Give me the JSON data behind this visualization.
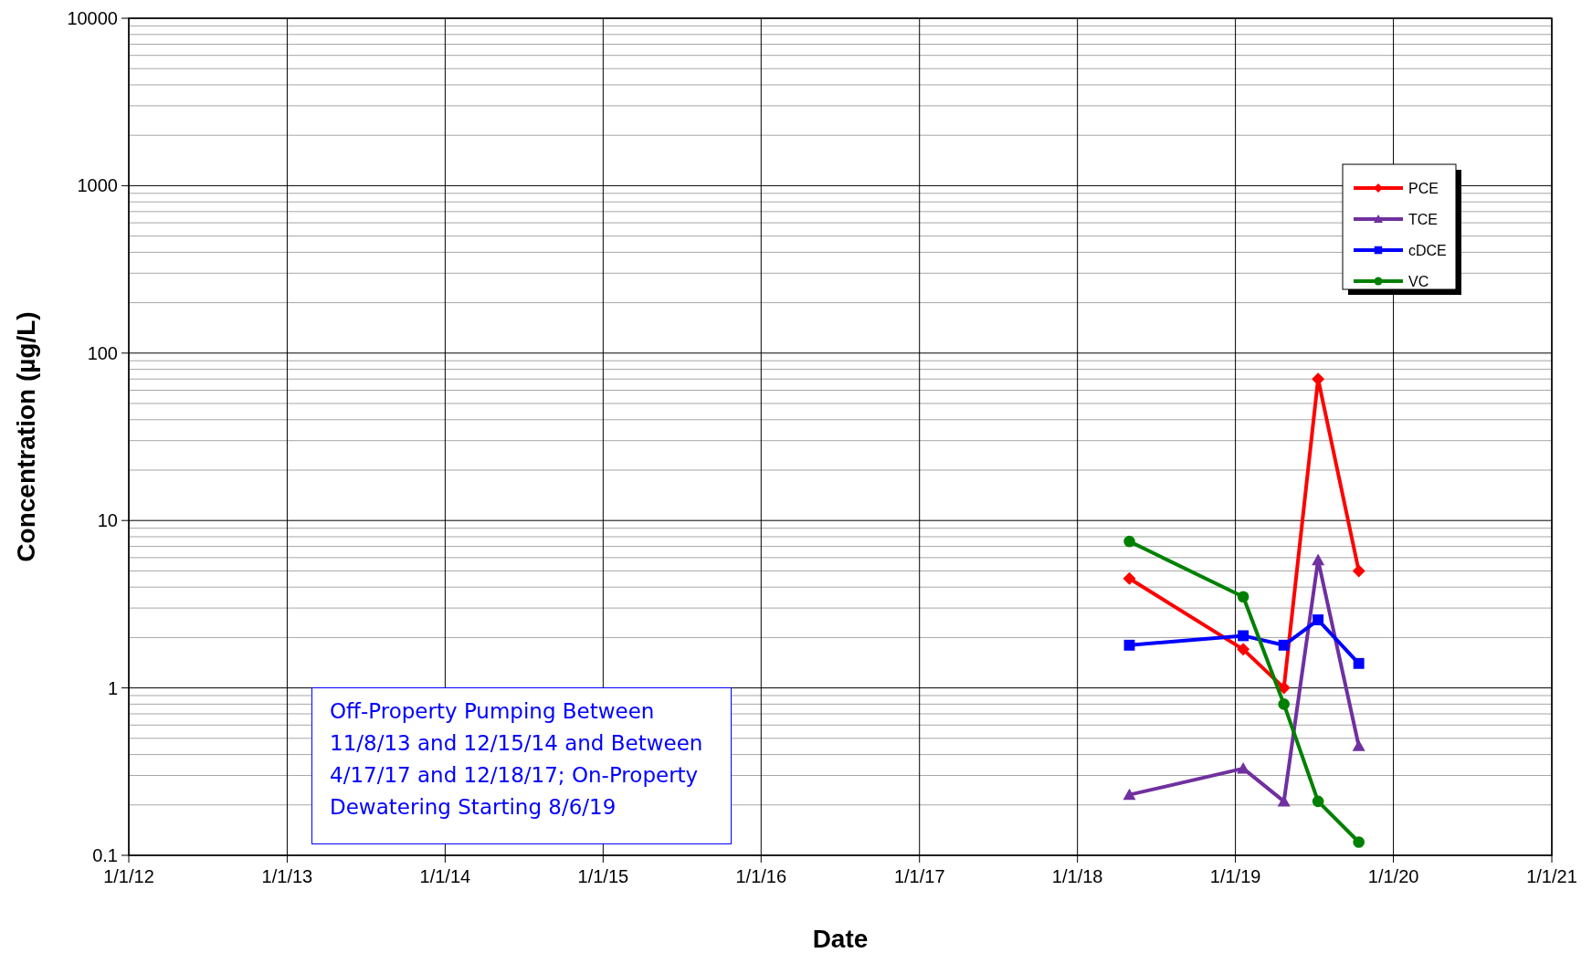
{
  "chart_data": {
    "type": "line",
    "xlabel": "Date",
    "ylabel": "Concentration (µg/L)",
    "log": "y",
    "grid": true,
    "legend": "top right",
    "marker": "circle",
    "line_style": "solid",
    "xlim": [
      "2012-01-01",
      "2021-01-01"
    ],
    "xticks": [
      {
        "value": "2012-01-01",
        "label": "1/1/12"
      },
      {
        "value": "2013-01-01",
        "label": "1/1/13"
      },
      {
        "value": "2014-01-01",
        "label": "1/1/14"
      },
      {
        "value": "2015-01-01",
        "label": "1/1/15"
      },
      {
        "value": "2016-01-01",
        "label": "1/1/16"
      },
      {
        "value": "2017-01-01",
        "label": "1/1/17"
      },
      {
        "value": "2018-01-01",
        "label": "1/1/18"
      },
      {
        "value": "2019-01-01",
        "label": "1/1/19"
      },
      {
        "value": "2020-01-01",
        "label": "1/1/20"
      },
      {
        "value": "2021-01-01",
        "label": "1/1/21"
      }
    ],
    "ylim": [
      0.1,
      10000
    ],
    "yticks": [
      0.1,
      1,
      10,
      100,
      1000,
      10000
    ],
    "x": [
      "2018-05-01",
      "2019-01-19",
      "2019-04-23",
      "2019-07-11",
      "2019-10-13"
    ],
    "series": [
      {
        "name": "PCE",
        "color": "#ff0000",
        "marker": "diamond",
        "values": [
          4.5,
          1.7,
          1.0,
          70,
          5.0
        ]
      },
      {
        "name": "TCE",
        "color": "#7030a0",
        "marker": "triangle",
        "values": [
          0.23,
          0.33,
          0.21,
          5.8,
          0.45
        ]
      },
      {
        "name": "cDCE",
        "color": "#0000ff",
        "marker": "square",
        "values": [
          1.8,
          2.05,
          1.8,
          2.55,
          1.4
        ]
      },
      {
        "name": "VC",
        "color": "#008000",
        "marker": "circle",
        "values": [
          7.5,
          3.5,
          0.8,
          0.21,
          0.12
        ]
      }
    ],
    "annotations": [
      "Off-Property Pumping Between 11/8/13 and 12/15/14 and Between 4/17/17 and 12/18/17; On-Property Dewatering Starting 8/6/19"
    ]
  }
}
